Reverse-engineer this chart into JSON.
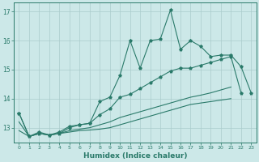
{
  "title": "",
  "xlabel": "Humidex (Indice chaleur)",
  "background_color": "#cce8e8",
  "grid_color": "#aacccc",
  "line_color": "#2a7a6a",
  "xlim": [
    -0.5,
    23.5
  ],
  "ylim": [
    12.5,
    17.3
  ],
  "yticks": [
    13,
    14,
    15,
    16,
    17
  ],
  "xticks": [
    0,
    1,
    2,
    3,
    4,
    5,
    6,
    7,
    8,
    9,
    10,
    11,
    12,
    13,
    14,
    15,
    16,
    17,
    18,
    19,
    20,
    21,
    22,
    23
  ],
  "x_data": [
    0,
    1,
    2,
    3,
    4,
    5,
    6,
    7,
    8,
    9,
    10,
    11,
    12,
    13,
    14,
    15,
    16,
    17,
    18,
    19,
    20,
    21,
    22,
    23
  ],
  "line1_y": [
    13.5,
    12.7,
    12.8,
    12.75,
    12.8,
    13.0,
    13.1,
    13.15,
    13.9,
    14.05,
    14.8,
    16.0,
    15.05,
    16.0,
    16.05,
    17.05,
    15.7,
    16.0,
    15.8,
    15.45,
    15.5,
    15.5,
    15.1,
    14.2
  ],
  "line2_y": [
    13.5,
    12.7,
    12.85,
    12.75,
    12.85,
    13.05,
    13.1,
    13.15,
    13.45,
    13.65,
    14.05,
    14.15,
    14.35,
    14.55,
    14.75,
    14.95,
    15.05,
    15.05,
    15.15,
    15.25,
    15.35,
    15.45,
    14.2,
    null
  ],
  "line3_y": [
    13.2,
    12.7,
    12.8,
    12.75,
    12.8,
    12.9,
    12.95,
    13.0,
    13.1,
    13.2,
    13.35,
    13.45,
    13.55,
    13.65,
    13.75,
    13.85,
    13.95,
    14.05,
    14.12,
    14.2,
    14.3,
    14.4,
    null,
    null
  ],
  "line4_y": [
    12.9,
    12.7,
    12.8,
    12.75,
    12.8,
    12.85,
    12.9,
    12.92,
    12.95,
    13.0,
    13.1,
    13.2,
    13.3,
    13.4,
    13.5,
    13.6,
    13.7,
    13.8,
    13.85,
    13.9,
    13.95,
    14.0,
    null,
    null
  ]
}
